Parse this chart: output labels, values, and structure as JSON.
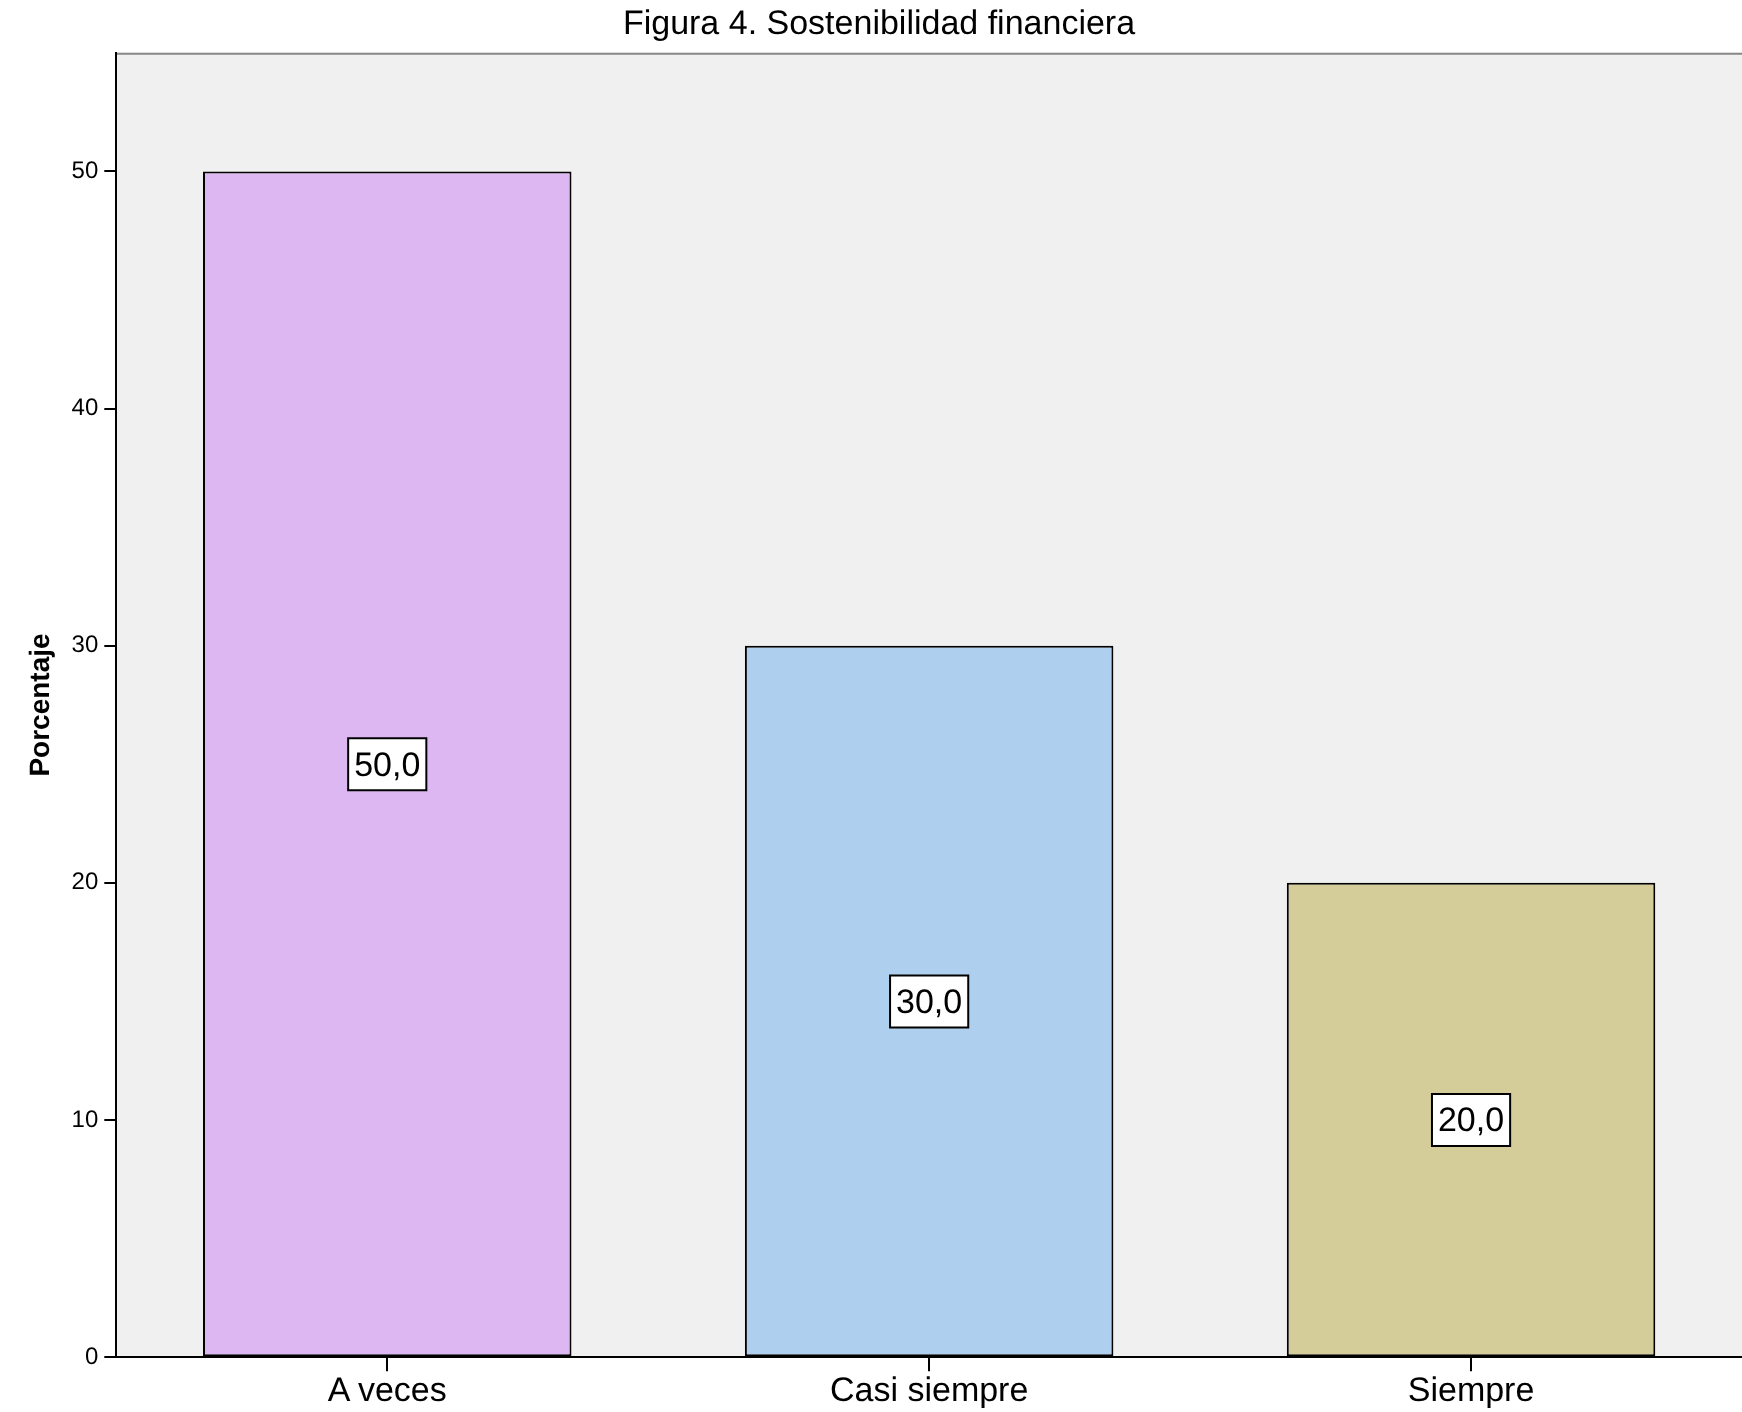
{
  "chart_data": {
    "type": "bar",
    "title": "Figura 4. Sostenibilidad financiera",
    "ylabel": "Porcentaje",
    "categories": [
      "A veces",
      "Casi siempre",
      "Siempre"
    ],
    "values": [
      50,
      30,
      20
    ],
    "colors": [
      "#dcb7f2",
      "#aed0ee",
      "#d4cd99"
    ],
    "value_labels": [
      "50,0",
      "30,0",
      "20,0"
    ],
    "ylim": [
      0,
      55
    ],
    "yticks": [
      0,
      10,
      20,
      30,
      40,
      50
    ],
    "grid": false,
    "legend": false
  }
}
